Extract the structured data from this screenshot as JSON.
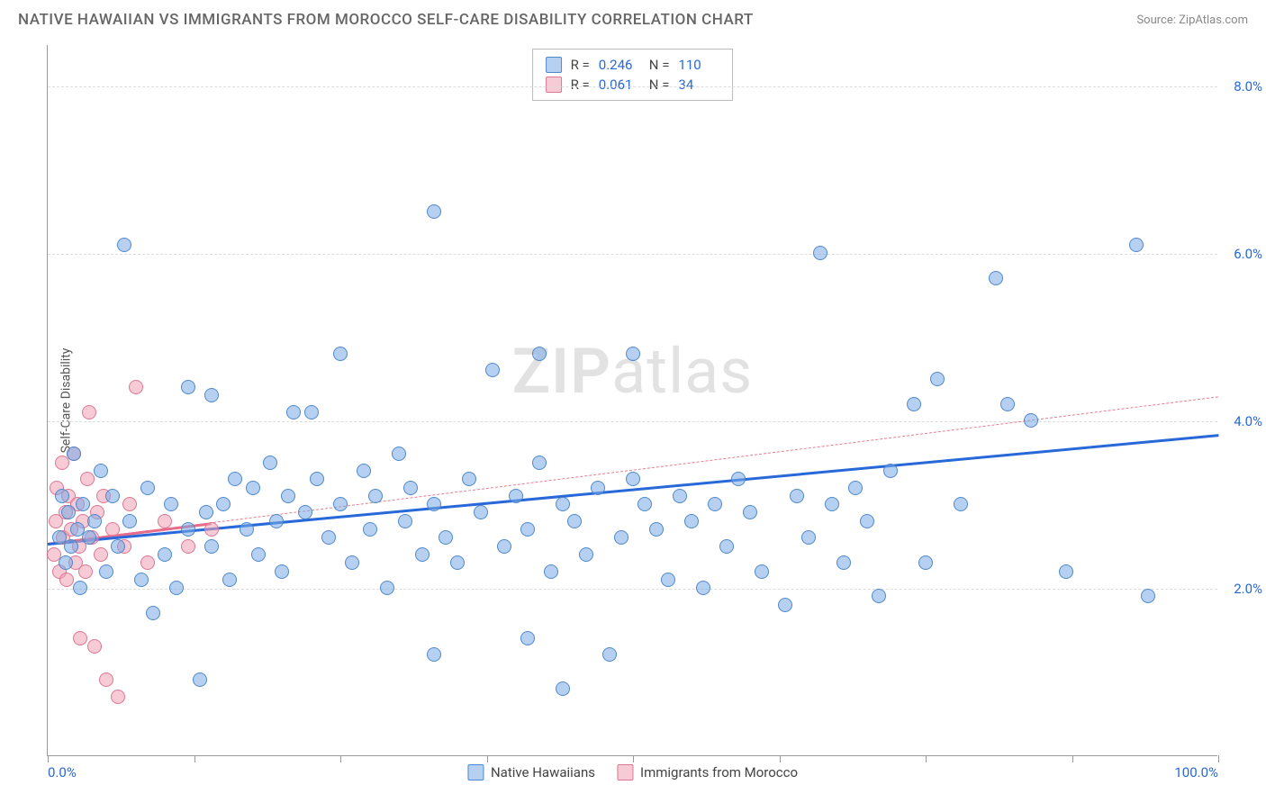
{
  "title": "NATIVE HAWAIIAN VS IMMIGRANTS FROM MOROCCO SELF-CARE DISABILITY CORRELATION CHART",
  "source_label": "Source:",
  "source_name": "ZipAtlas.com",
  "y_axis_label": "Self-Care Disability",
  "watermark": {
    "part1": "ZIP",
    "part2": "atlas"
  },
  "chart": {
    "type": "scatter",
    "xlim": [
      0,
      100
    ],
    "ylim": [
      0,
      8.5
    ],
    "x_ticks": [
      0,
      12.5,
      25,
      37.5,
      50,
      62.5,
      75,
      87.5,
      100
    ],
    "x_tick_labels_shown": {
      "0": "0.0%",
      "100": "100.0%"
    },
    "y_ticks": [
      2.0,
      4.0,
      6.0,
      8.0
    ],
    "y_tick_labels": [
      "2.0%",
      "4.0%",
      "6.0%",
      "8.0%"
    ],
    "grid_color": "#dddddd",
    "axis_color": "#999999",
    "background_color": "#ffffff",
    "tick_label_color": "#2868d8",
    "tick_label_fontsize": 15,
    "y_label_fontsize": 14,
    "marker_size": 16,
    "marker_opacity": 0.55
  },
  "series": [
    {
      "name": "Native Hawaiians",
      "color_fill": "rgba(120,170,230,0.55)",
      "color_stroke": "rgba(70,130,200,0.9)",
      "trend": {
        "x1": 0,
        "y1": 2.55,
        "x2": 100,
        "y2": 3.85,
        "color": "#2868d8",
        "width": 3,
        "dash": "solid"
      },
      "stats": {
        "R": "0.246",
        "N": "110"
      },
      "points": [
        [
          1.0,
          2.6
        ],
        [
          1.2,
          3.1
        ],
        [
          1.5,
          2.3
        ],
        [
          1.8,
          2.9
        ],
        [
          2.0,
          2.5
        ],
        [
          2.2,
          3.6
        ],
        [
          2.5,
          2.7
        ],
        [
          2.8,
          2.0
        ],
        [
          3.0,
          3.0
        ],
        [
          3.5,
          2.6
        ],
        [
          4.0,
          2.8
        ],
        [
          4.5,
          3.4
        ],
        [
          5.0,
          2.2
        ],
        [
          5.5,
          3.1
        ],
        [
          6.0,
          2.5
        ],
        [
          6.5,
          6.1
        ],
        [
          7.0,
          2.8
        ],
        [
          8.0,
          2.1
        ],
        [
          8.5,
          3.2
        ],
        [
          9.0,
          1.7
        ],
        [
          10.0,
          2.4
        ],
        [
          10.5,
          3.0
        ],
        [
          11.0,
          2.0
        ],
        [
          12.0,
          2.7
        ],
        [
          12.0,
          4.4
        ],
        [
          13.0,
          0.9
        ],
        [
          13.5,
          2.9
        ],
        [
          14.0,
          2.5
        ],
        [
          14.0,
          4.3
        ],
        [
          15.0,
          3.0
        ],
        [
          15.5,
          2.1
        ],
        [
          16.0,
          3.3
        ],
        [
          17.0,
          2.7
        ],
        [
          17.5,
          3.2
        ],
        [
          18.0,
          2.4
        ],
        [
          19.0,
          3.5
        ],
        [
          19.5,
          2.8
        ],
        [
          20.0,
          2.2
        ],
        [
          20.5,
          3.1
        ],
        [
          21.0,
          4.1
        ],
        [
          22.0,
          2.9
        ],
        [
          22.5,
          4.1
        ],
        [
          23.0,
          3.3
        ],
        [
          24.0,
          2.6
        ],
        [
          25.0,
          3.0
        ],
        [
          25.0,
          4.8
        ],
        [
          26.0,
          2.3
        ],
        [
          27.0,
          3.4
        ],
        [
          27.5,
          2.7
        ],
        [
          28.0,
          3.1
        ],
        [
          29.0,
          2.0
        ],
        [
          30.0,
          3.6
        ],
        [
          30.5,
          2.8
        ],
        [
          31.0,
          3.2
        ],
        [
          32.0,
          2.4
        ],
        [
          33.0,
          1.2
        ],
        [
          33.0,
          3.0
        ],
        [
          33.0,
          6.5
        ],
        [
          34.0,
          2.6
        ],
        [
          35.0,
          2.3
        ],
        [
          36.0,
          3.3
        ],
        [
          37.0,
          2.9
        ],
        [
          38.0,
          4.6
        ],
        [
          39.0,
          2.5
        ],
        [
          40.0,
          3.1
        ],
        [
          41.0,
          2.7
        ],
        [
          41.0,
          1.4
        ],
        [
          42.0,
          3.5
        ],
        [
          42.0,
          4.8
        ],
        [
          43.0,
          2.2
        ],
        [
          44.0,
          3.0
        ],
        [
          44.0,
          0.8
        ],
        [
          45.0,
          2.8
        ],
        [
          46.0,
          2.4
        ],
        [
          47.0,
          3.2
        ],
        [
          48.0,
          1.2
        ],
        [
          49.0,
          2.6
        ],
        [
          50.0,
          3.3
        ],
        [
          50.0,
          4.8
        ],
        [
          51.0,
          3.0
        ],
        [
          52.0,
          2.7
        ],
        [
          53.0,
          2.1
        ],
        [
          54.0,
          3.1
        ],
        [
          55.0,
          2.8
        ],
        [
          56.0,
          2.0
        ],
        [
          57.0,
          3.0
        ],
        [
          58.0,
          2.5
        ],
        [
          59.0,
          3.3
        ],
        [
          60.0,
          2.9
        ],
        [
          61.0,
          2.2
        ],
        [
          63.0,
          1.8
        ],
        [
          64.0,
          3.1
        ],
        [
          65.0,
          2.6
        ],
        [
          66.0,
          6.0
        ],
        [
          67.0,
          3.0
        ],
        [
          68.0,
          2.3
        ],
        [
          69.0,
          3.2
        ],
        [
          70.0,
          2.8
        ],
        [
          71.0,
          1.9
        ],
        [
          72.0,
          3.4
        ],
        [
          74.0,
          4.2
        ],
        [
          75.0,
          2.3
        ],
        [
          76.0,
          4.5
        ],
        [
          78.0,
          3.0
        ],
        [
          81.0,
          5.7
        ],
        [
          82.0,
          4.2
        ],
        [
          84.0,
          4.0
        ],
        [
          87.0,
          2.2
        ],
        [
          93.0,
          6.1
        ],
        [
          94.0,
          1.9
        ]
      ]
    },
    {
      "name": "Immigrants from Morocco",
      "color_fill": "rgba(240,160,180,0.55)",
      "color_stroke": "rgba(220,110,140,0.9)",
      "trend": {
        "x1": 0,
        "y1": 2.55,
        "x2": 100,
        "y2": 4.3,
        "color": "#e08090",
        "width": 1.5,
        "dash": "5,5"
      },
      "trend_solid_until_x": 14,
      "stats": {
        "R": "0.061",
        "N": "34"
      },
      "points": [
        [
          0.5,
          2.4
        ],
        [
          0.7,
          2.8
        ],
        [
          0.8,
          3.2
        ],
        [
          1.0,
          2.2
        ],
        [
          1.2,
          3.5
        ],
        [
          1.3,
          2.6
        ],
        [
          1.5,
          2.9
        ],
        [
          1.6,
          2.1
        ],
        [
          1.8,
          3.1
        ],
        [
          2.0,
          2.7
        ],
        [
          2.2,
          3.6
        ],
        [
          2.4,
          2.3
        ],
        [
          2.5,
          3.0
        ],
        [
          2.7,
          2.5
        ],
        [
          2.8,
          1.4
        ],
        [
          3.0,
          2.8
        ],
        [
          3.2,
          2.2
        ],
        [
          3.4,
          3.3
        ],
        [
          3.5,
          4.1
        ],
        [
          3.8,
          2.6
        ],
        [
          4.0,
          1.3
        ],
        [
          4.2,
          2.9
        ],
        [
          4.5,
          2.4
        ],
        [
          4.8,
          3.1
        ],
        [
          5.0,
          0.9
        ],
        [
          5.5,
          2.7
        ],
        [
          6.0,
          0.7
        ],
        [
          6.5,
          2.5
        ],
        [
          7.0,
          3.0
        ],
        [
          7.5,
          4.4
        ],
        [
          8.5,
          2.3
        ],
        [
          10.0,
          2.8
        ],
        [
          12.0,
          2.5
        ],
        [
          14.0,
          2.7
        ]
      ]
    }
  ],
  "legend": {
    "series1_label": "Native Hawaiians",
    "series2_label": "Immigrants from Morocco"
  },
  "stats_box": {
    "r_label": "R =",
    "n_label": "N ="
  }
}
